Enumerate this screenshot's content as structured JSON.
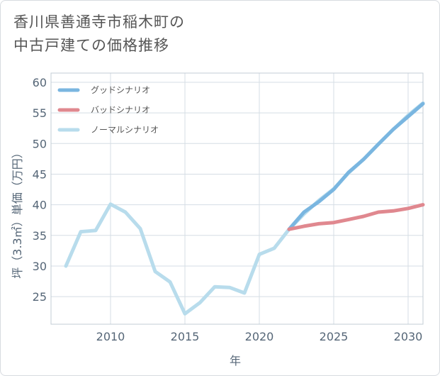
{
  "title_lines": [
    "香川県善通寺市稲木町の",
    "中古戸建ての価格推移"
  ],
  "chart_data": {
    "type": "line",
    "title": "香川県善通寺市稲木町の中古戸建ての価格推移",
    "xlabel": "年",
    "ylabel": "坪（3.3㎡）単価（万円）",
    "xlim": [
      2006,
      2031
    ],
    "ylim": [
      20.5,
      61.5
    ],
    "xticks": [
      2010,
      2015,
      2020,
      2025,
      2030
    ],
    "yticks": [
      25,
      30,
      35,
      40,
      45,
      50,
      55,
      60
    ],
    "legend_position": "top-left",
    "series": [
      {
        "name": "グッドシナリオ",
        "color": "#7ab6e0",
        "x": [
          2022,
          2023,
          2024,
          2025,
          2026,
          2027,
          2028,
          2029,
          2030,
          2031
        ],
        "y": [
          36.0,
          38.8,
          40.5,
          42.5,
          45.3,
          47.4,
          49.9,
          52.3,
          54.4,
          56.5
        ]
      },
      {
        "name": "バッドシナリオ",
        "color": "#e0888f",
        "x": [
          2022,
          2023,
          2024,
          2025,
          2026,
          2027,
          2028,
          2029,
          2030,
          2031
        ],
        "y": [
          36.0,
          36.5,
          36.9,
          37.1,
          37.6,
          38.1,
          38.8,
          39.0,
          39.4,
          40.0
        ]
      },
      {
        "name": "ノーマルシナリオ",
        "color": "#b8dcec",
        "x": [
          2007,
          2008,
          2009,
          2010,
          2011,
          2012,
          2013,
          2014,
          2015,
          2016,
          2017,
          2018,
          2019,
          2020,
          2021,
          2022,
          2023,
          2024,
          2025,
          2026,
          2027,
          2028,
          2029,
          2030,
          2031
        ],
        "y": [
          30.0,
          35.6,
          35.8,
          40.1,
          38.8,
          36.1,
          29.1,
          27.4,
          22.2,
          24.0,
          26.6,
          26.5,
          25.6,
          31.9,
          32.9,
          36.0,
          38.5,
          40.7,
          42.6,
          45.2,
          47.4,
          49.9,
          52.3,
          54.6,
          56.6
        ]
      }
    ]
  }
}
